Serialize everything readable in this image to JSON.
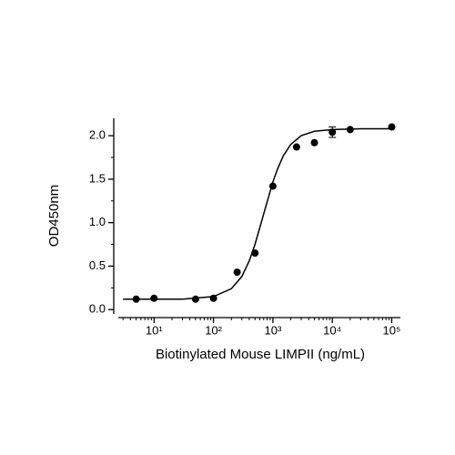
{
  "chart_data": {
    "type": "scatter",
    "x_label": "Biotinylated Mouse LIMPII (ng/mL)",
    "y_label": "OD450nm",
    "x_log": true,
    "color": "#000000",
    "x": [
      5,
      10,
      50,
      100,
      250,
      500,
      1000,
      2500,
      5000,
      10000,
      20000,
      100000
    ],
    "values": [
      0.12,
      0.13,
      0.12,
      0.13,
      0.43,
      0.65,
      1.42,
      1.87,
      1.92,
      2.04,
      2.07,
      2.1
    ],
    "errors": [
      null,
      null,
      null,
      null,
      null,
      null,
      null,
      null,
      null,
      0.06,
      null,
      null
    ],
    "curve": {
      "x": [
        3,
        10,
        30,
        100,
        200,
        300,
        400,
        500,
        600,
        700,
        800,
        1000,
        1200,
        1500,
        2000,
        3000,
        5000,
        10000,
        30000,
        100000
      ],
      "values": [
        0.12,
        0.12,
        0.12,
        0.15,
        0.24,
        0.38,
        0.56,
        0.75,
        0.94,
        1.1,
        1.24,
        1.47,
        1.62,
        1.77,
        1.9,
        2.0,
        2.05,
        2.07,
        2.08,
        2.08
      ]
    },
    "xlim": [
      2.5,
      140000
    ],
    "xticks": [
      {
        "value": 10,
        "label": "10¹"
      },
      {
        "value": 100,
        "label": "10²"
      },
      {
        "value": 1000,
        "label": "10³"
      },
      {
        "value": 10000,
        "label": "10⁴"
      },
      {
        "value": 100000,
        "label": "10⁵"
      }
    ],
    "xminorticks": [
      3,
      4,
      5,
      6,
      7,
      8,
      9,
      20,
      30,
      40,
      50,
      60,
      70,
      80,
      90,
      200,
      300,
      400,
      500,
      600,
      700,
      800,
      900,
      2000,
      3000,
      4000,
      5000,
      6000,
      7000,
      8000,
      9000,
      20000,
      30000,
      40000,
      50000,
      60000,
      70000,
      80000,
      90000
    ],
    "ylim": [
      -0.05,
      2.2
    ],
    "yticks": [
      {
        "value": 0,
        "label": "0.0"
      },
      0.5,
      {
        "value": 1,
        "label": "1.0"
      },
      1.5,
      {
        "value": 2,
        "label": "2.0"
      }
    ],
    "yminorticks": [
      0.25,
      0.75,
      1.25,
      1.75
    ]
  }
}
